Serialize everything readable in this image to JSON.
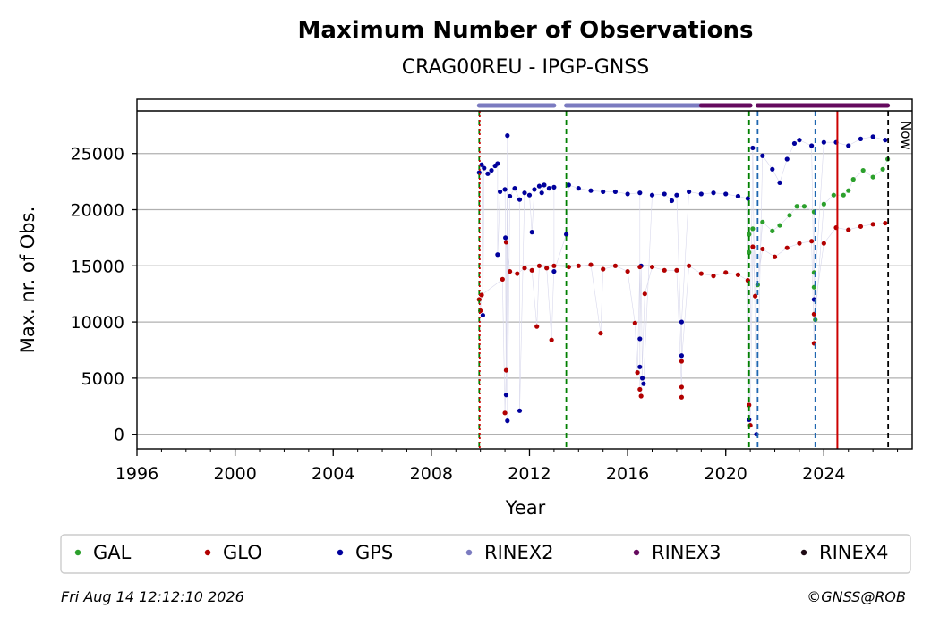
{
  "chart_data": {
    "type": "scatter",
    "title": "Maximum Number of Observations",
    "subtitle": "CRAG00REU - IPGP-GNSS",
    "xlabel": "Year",
    "ylabel": "Max. nr. of Obs.",
    "xlim": [
      1996,
      2027.6
    ],
    "ylim": [
      -1300,
      28800
    ],
    "grid": "horizontal",
    "x_ticks": [
      "1996",
      "2000",
      "2004",
      "2008",
      "2012",
      "2016",
      "2020",
      "2024"
    ],
    "y_ticks": [
      "0",
      "5000",
      "10000",
      "15000",
      "20000",
      "25000"
    ],
    "now_label": "Now",
    "legend": {
      "placement": "bottom",
      "entries": [
        {
          "label": "GAL",
          "color": "#2ca02c"
        },
        {
          "label": "GLO",
          "color": "#b20000"
        },
        {
          "label": "GPS",
          "color": "#00009c"
        },
        {
          "label": "RINEX2",
          "color": "#7b7bc0"
        },
        {
          "label": "RINEX3",
          "color": "#650a5e"
        },
        {
          "label": "RINEX4",
          "color": "#1e0a14"
        }
      ]
    },
    "series": [
      {
        "name": "GPS",
        "color": "#00009c",
        "points": [
          [
            2009.95,
            23300
          ],
          [
            2010.05,
            24000
          ],
          [
            2010.15,
            23700
          ],
          [
            2010.3,
            23200
          ],
          [
            2010.45,
            23500
          ],
          [
            2010.6,
            23900
          ],
          [
            2010.7,
            24100
          ],
          [
            2010.8,
            21600
          ],
          [
            2011.0,
            21800
          ],
          [
            2011.2,
            21200
          ],
          [
            2011.4,
            21900
          ],
          [
            2011.6,
            20900
          ],
          [
            2011.8,
            21500
          ],
          [
            2012.0,
            21300
          ],
          [
            2012.2,
            21800
          ],
          [
            2012.4,
            22100
          ],
          [
            2012.6,
            22200
          ],
          [
            2012.8,
            21900
          ],
          [
            2013.0,
            22000
          ],
          [
            2013.6,
            22200
          ],
          [
            2014.0,
            21900
          ],
          [
            2014.5,
            21700
          ],
          [
            2015.0,
            21600
          ],
          [
            2015.5,
            21600
          ],
          [
            2016.0,
            21400
          ],
          [
            2016.5,
            21500
          ],
          [
            2017.0,
            21300
          ],
          [
            2017.5,
            21400
          ],
          [
            2018.0,
            21300
          ],
          [
            2018.5,
            21600
          ],
          [
            2019.0,
            21400
          ],
          [
            2019.5,
            21500
          ],
          [
            2020.0,
            21400
          ],
          [
            2020.5,
            21200
          ],
          [
            2020.9,
            21000
          ],
          [
            2021.1,
            25500
          ],
          [
            2021.5,
            24800
          ],
          [
            2021.9,
            23600
          ],
          [
            2022.2,
            22400
          ],
          [
            2022.5,
            24500
          ],
          [
            2022.8,
            25900
          ],
          [
            2023.0,
            26200
          ],
          [
            2023.5,
            25700
          ],
          [
            2024.0,
            26000
          ],
          [
            2024.5,
            26000
          ],
          [
            2025.0,
            25700
          ],
          [
            2025.5,
            26300
          ],
          [
            2026.0,
            26500
          ],
          [
            2026.5,
            26200
          ],
          [
            2011.1,
            26600
          ],
          [
            2011.05,
            3500
          ],
          [
            2011.1,
            1200
          ],
          [
            2011.02,
            17500
          ],
          [
            2010.7,
            16000
          ],
          [
            2011.6,
            2100
          ],
          [
            2010.1,
            10600
          ],
          [
            2016.5,
            6000
          ],
          [
            2016.6,
            5000
          ],
          [
            2016.65,
            4500
          ],
          [
            2016.5,
            8500
          ],
          [
            2016.55,
            15000
          ],
          [
            2018.2,
            7000
          ],
          [
            2018.2,
            10000
          ],
          [
            2021.25,
            0
          ],
          [
            2020.95,
            1300
          ],
          [
            2023.6,
            12000
          ],
          [
            2012.1,
            18000
          ],
          [
            2013.0,
            14500
          ],
          [
            2012.5,
            21500
          ],
          [
            2013.5,
            17800
          ],
          [
            2017.8,
            20800
          ]
        ]
      },
      {
        "name": "GLO",
        "color": "#b20000",
        "points": [
          [
            2009.95,
            12000
          ],
          [
            2010.0,
            11000
          ],
          [
            2010.05,
            12400
          ],
          [
            2010.9,
            13800
          ],
          [
            2011.2,
            14500
          ],
          [
            2011.5,
            14300
          ],
          [
            2011.8,
            14800
          ],
          [
            2012.1,
            14600
          ],
          [
            2012.4,
            15000
          ],
          [
            2012.7,
            14800
          ],
          [
            2013.0,
            15000
          ],
          [
            2013.6,
            14900
          ],
          [
            2014.0,
            15000
          ],
          [
            2014.5,
            15100
          ],
          [
            2015.0,
            14700
          ],
          [
            2015.5,
            15000
          ],
          [
            2016.0,
            14500
          ],
          [
            2016.5,
            14900
          ],
          [
            2017.0,
            14900
          ],
          [
            2017.5,
            14600
          ],
          [
            2018.0,
            14600
          ],
          [
            2018.5,
            15000
          ],
          [
            2019.0,
            14300
          ],
          [
            2019.5,
            14100
          ],
          [
            2020.0,
            14400
          ],
          [
            2020.5,
            14200
          ],
          [
            2020.9,
            13700
          ],
          [
            2021.1,
            16700
          ],
          [
            2021.5,
            16500
          ],
          [
            2022.0,
            15800
          ],
          [
            2022.5,
            16600
          ],
          [
            2023.0,
            17000
          ],
          [
            2023.5,
            17200
          ],
          [
            2024.0,
            17000
          ],
          [
            2024.5,
            18400
          ],
          [
            2025.0,
            18200
          ],
          [
            2025.5,
            18500
          ],
          [
            2026.0,
            18700
          ],
          [
            2026.5,
            18800
          ],
          [
            2011.05,
            5700
          ],
          [
            2011.0,
            1900
          ],
          [
            2011.05,
            17100
          ],
          [
            2012.3,
            9600
          ],
          [
            2014.9,
            9000
          ],
          [
            2016.4,
            5500
          ],
          [
            2016.5,
            4000
          ],
          [
            2016.55,
            3400
          ],
          [
            2016.7,
            12500
          ],
          [
            2018.2,
            4200
          ],
          [
            2018.2,
            3300
          ],
          [
            2018.2,
            6500
          ],
          [
            2023.6,
            8100
          ],
          [
            2023.6,
            10700
          ],
          [
            2021.0,
            800
          ],
          [
            2020.95,
            2600
          ],
          [
            2021.2,
            12300
          ],
          [
            2012.9,
            8400
          ],
          [
            2016.3,
            9900
          ]
        ]
      },
      {
        "name": "GAL",
        "color": "#2ca02c",
        "points": [
          [
            2020.95,
            16200
          ],
          [
            2021.1,
            18300
          ],
          [
            2021.5,
            18900
          ],
          [
            2021.9,
            18100
          ],
          [
            2022.2,
            18600
          ],
          [
            2022.6,
            19500
          ],
          [
            2022.9,
            20300
          ],
          [
            2023.2,
            20300
          ],
          [
            2023.6,
            19800
          ],
          [
            2024.0,
            20500
          ],
          [
            2024.4,
            21300
          ],
          [
            2024.8,
            21300
          ],
          [
            2025.2,
            22700
          ],
          [
            2025.6,
            23500
          ],
          [
            2026.0,
            22900
          ],
          [
            2026.4,
            23600
          ],
          [
            2026.6,
            24500
          ],
          [
            2021.3,
            13300
          ],
          [
            2023.6,
            14400
          ],
          [
            2023.6,
            13100
          ],
          [
            2023.65,
            10200
          ],
          [
            2020.95,
            17800
          ],
          [
            2025.0,
            21700
          ]
        ]
      }
    ],
    "vertical_lines": [
      {
        "x": 2009.95,
        "color": "#008000",
        "style": "dashed"
      },
      {
        "x": 2009.97,
        "color": "#cc0000",
        "style": "dotted"
      },
      {
        "x": 2013.5,
        "color": "#008000",
        "style": "dashed"
      },
      {
        "x": 2020.95,
        "color": "#008000",
        "style": "dashed"
      },
      {
        "x": 2021.3,
        "color": "#1f67b0",
        "style": "dashed"
      },
      {
        "x": 2023.65,
        "color": "#1f67b0",
        "style": "dashed"
      },
      {
        "x": 2024.55,
        "color": "#cc0000",
        "style": "solid"
      },
      {
        "x": 2026.62,
        "color": "#000000",
        "style": "dashed"
      }
    ],
    "format_bars": [
      {
        "name": "RINEX2",
        "color": "#7b7bc0",
        "ranges": [
          [
            2009.95,
            2013.0
          ],
          [
            2013.5,
            2019.0
          ]
        ]
      },
      {
        "name": "RINEX3",
        "color": "#650a5e",
        "ranges": [
          [
            2019.0,
            2021.0
          ],
          [
            2021.3,
            2026.6
          ]
        ]
      }
    ]
  },
  "footer": {
    "timestamp": "Fri Aug 14 12:12:10 2026",
    "copyright": "©GNSS@ROB"
  }
}
